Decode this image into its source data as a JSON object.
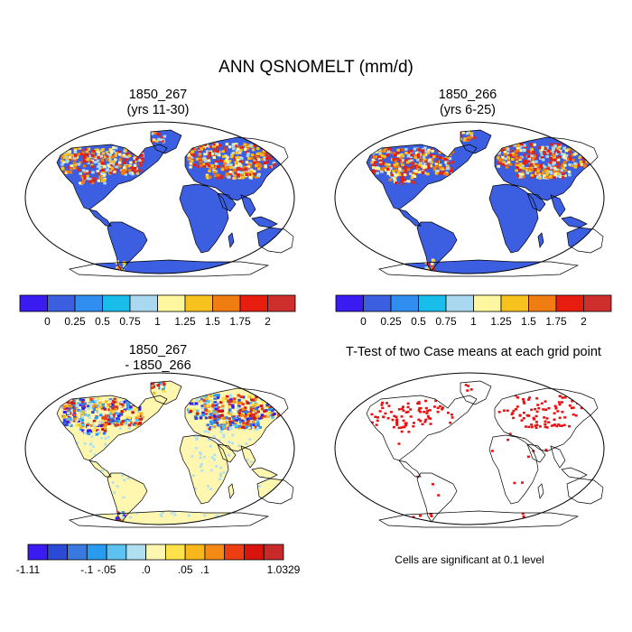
{
  "title": "ANN QSNOMELT (mm/d)",
  "panels": [
    {
      "id": "p1",
      "title_line1": "1850_267",
      "title_line2": "(yrs 11-30)"
    },
    {
      "id": "p2",
      "title_line1": "1850_266",
      "title_line2": "(yrs 6-25)"
    },
    {
      "id": "p3",
      "title_line1": "1850_267",
      "title_line2": "- 1850_266"
    },
    {
      "id": "p4",
      "title_line1": "T-Test of two Case means at each grid point",
      "title_line2": ""
    }
  ],
  "colorbar_abs": {
    "colors": [
      "#3a1cf2",
      "#3c5ee0",
      "#2f8ef0",
      "#19bdea",
      "#a9d8f0",
      "#fff6a0",
      "#f7c11e",
      "#f07d12",
      "#e81c0f",
      "#cf2f2c"
    ],
    "labels": [
      "0",
      "0.25",
      "0.5",
      "0.75",
      "1",
      "1.25",
      "1.5",
      "1.75",
      "2"
    ]
  },
  "colorbar_diff": {
    "colors": [
      "#3a1cf2",
      "#2c4ad8",
      "#3a7ae0",
      "#2a9cef",
      "#5dc2ef",
      "#b0dff2",
      "#fff6b0",
      "#fde24a",
      "#f8b81c",
      "#f48a16",
      "#ec3e12",
      "#d9140c",
      "#c62a2a"
    ],
    "labels": [
      "-1.11",
      "-.1",
      "-.05",
      ".0",
      ".05",
      ".1",
      "1.0329"
    ]
  },
  "note": "Cells are significant at 0.1 level",
  "colors": {
    "ocean": "#ffffff",
    "land_abs": "#3c5ee0",
    "land_diff": "#fff6b0",
    "signif": "#e81010",
    "coast": "#000000"
  }
}
